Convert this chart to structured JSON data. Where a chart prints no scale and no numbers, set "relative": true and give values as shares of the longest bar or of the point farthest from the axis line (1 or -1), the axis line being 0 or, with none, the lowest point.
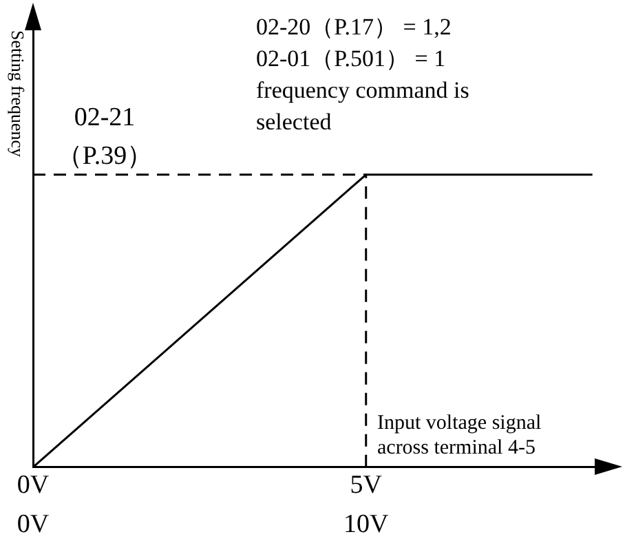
{
  "chart_data": {
    "type": "line",
    "relative": true,
    "x": [
      0,
      5,
      8.4
    ],
    "series": [
      {
        "color": "#000000",
        "values": [
          0,
          1,
          1
        ]
      }
    ],
    "xlim": [
      0,
      8.6
    ],
    "xticks": [
      {
        "value": 0,
        "label": "0V"
      },
      {
        "value": 5,
        "label": "5V"
      }
    ],
    "x2lim": [
      0,
      17.2
    ],
    "x2ticks": [
      {
        "value": 0,
        "label": "0V"
      },
      {
        "value": 10,
        "label": "10V"
      }
    ],
    "xlabel": "Input voltage signal across terminal 4-5",
    "ylabel": "Setting frequency",
    "ref_lines": [
      {
        "axis": "y",
        "value": 1,
        "label": "02-21 （P.39）",
        "line_style": "dashed",
        "color": "#000000"
      },
      {
        "axis": "x",
        "value": 5,
        "line_style": "dashed",
        "color": "#000000"
      }
    ],
    "annotations": [
      "02-20（P.17） = 1,2",
      "02-01（P.501） = 1",
      "frequency command is selected"
    ],
    "grid": false,
    "legend": false,
    "marker": "none",
    "line_style": "solid"
  }
}
